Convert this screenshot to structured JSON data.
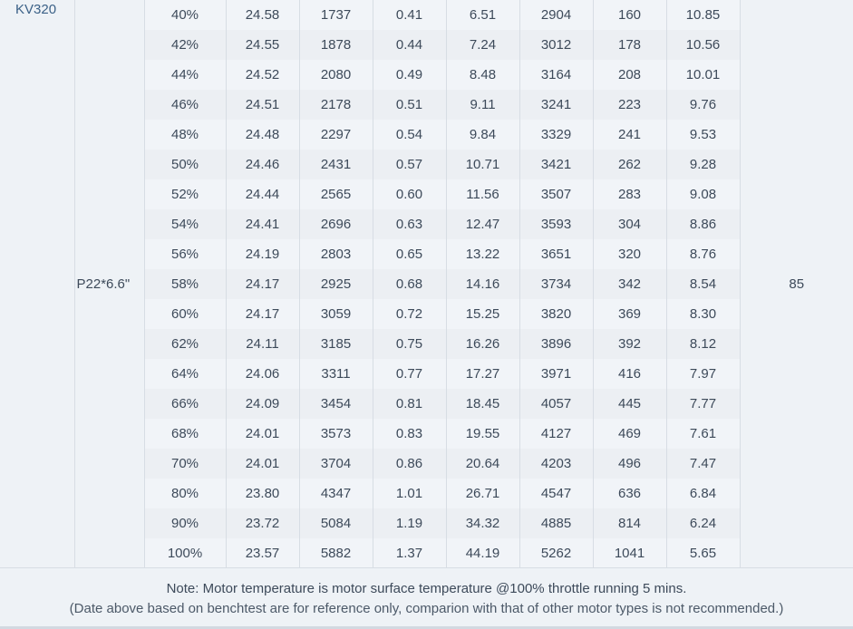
{
  "table": {
    "motor": "KV320",
    "prop": "P22*6.6\"",
    "temperature": "85",
    "rows": [
      [
        "40%",
        "24.58",
        "1737",
        "0.41",
        "6.51",
        "2904",
        "160",
        "10.85"
      ],
      [
        "42%",
        "24.55",
        "1878",
        "0.44",
        "7.24",
        "3012",
        "178",
        "10.56"
      ],
      [
        "44%",
        "24.52",
        "2080",
        "0.49",
        "8.48",
        "3164",
        "208",
        "10.01"
      ],
      [
        "46%",
        "24.51",
        "2178",
        "0.51",
        "9.11",
        "3241",
        "223",
        "9.76"
      ],
      [
        "48%",
        "24.48",
        "2297",
        "0.54",
        "9.84",
        "3329",
        "241",
        "9.53"
      ],
      [
        "50%",
        "24.46",
        "2431",
        "0.57",
        "10.71",
        "3421",
        "262",
        "9.28"
      ],
      [
        "52%",
        "24.44",
        "2565",
        "0.60",
        "11.56",
        "3507",
        "283",
        "9.08"
      ],
      [
        "54%",
        "24.41",
        "2696",
        "0.63",
        "12.47",
        "3593",
        "304",
        "8.86"
      ],
      [
        "56%",
        "24.19",
        "2803",
        "0.65",
        "13.22",
        "3651",
        "320",
        "8.76"
      ],
      [
        "58%",
        "24.17",
        "2925",
        "0.68",
        "14.16",
        "3734",
        "342",
        "8.54"
      ],
      [
        "60%",
        "24.17",
        "3059",
        "0.72",
        "15.25",
        "3820",
        "369",
        "8.30"
      ],
      [
        "62%",
        "24.11",
        "3185",
        "0.75",
        "16.26",
        "3896",
        "392",
        "8.12"
      ],
      [
        "64%",
        "24.06",
        "3311",
        "0.77",
        "17.27",
        "3971",
        "416",
        "7.97"
      ],
      [
        "66%",
        "24.09",
        "3454",
        "0.81",
        "18.45",
        "4057",
        "445",
        "7.77"
      ],
      [
        "68%",
        "24.01",
        "3573",
        "0.83",
        "19.55",
        "4127",
        "469",
        "7.61"
      ],
      [
        "70%",
        "24.01",
        "3704",
        "0.86",
        "20.64",
        "4203",
        "496",
        "7.47"
      ],
      [
        "80%",
        "23.80",
        "4347",
        "1.01",
        "26.71",
        "4547",
        "636",
        "6.84"
      ],
      [
        "90%",
        "23.72",
        "5084",
        "1.19",
        "34.32",
        "4885",
        "814",
        "6.24"
      ],
      [
        "100%",
        "23.57",
        "5882",
        "1.37",
        "44.19",
        "5262",
        "1041",
        "5.65"
      ]
    ]
  },
  "notes": {
    "line1": "Note: Motor temperature is motor surface temperature @100% throttle running 5 mins.",
    "line2": "(Date above based on benchtest are for reference only, comparion with that of other motor types is not recommended.)"
  }
}
